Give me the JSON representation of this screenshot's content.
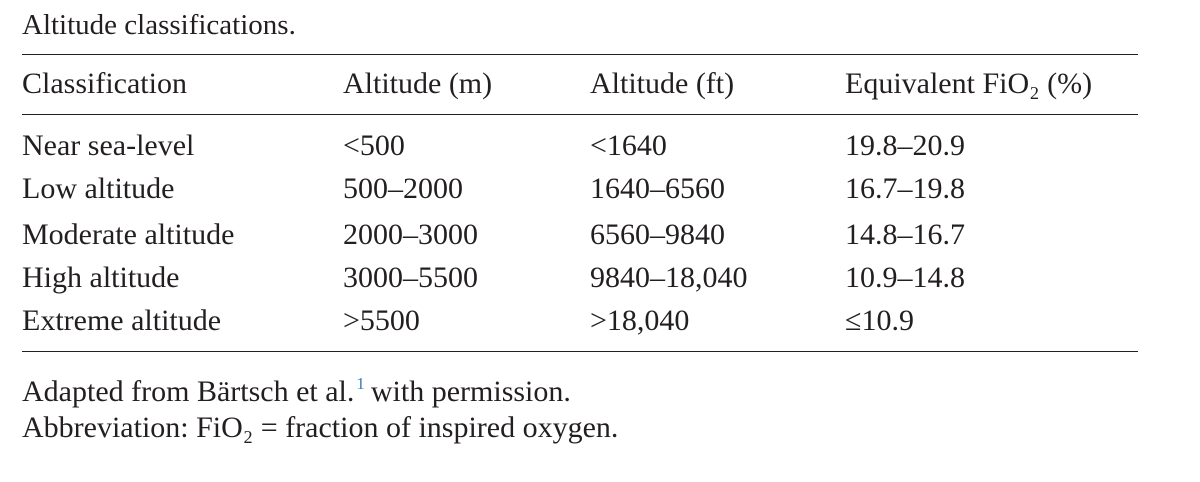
{
  "title": "Altitude classifications.",
  "table": {
    "header": [
      "Classification",
      "Altitude (m)",
      "Altitude (ft)",
      "Equivalent FiO₂ (%)"
    ],
    "rows": [
      [
        "Near sea-level",
        "<500",
        "<1640",
        "19.8–20.9"
      ],
      [
        "Low altitude",
        "500–2000",
        "1640–6560",
        "16.7–19.8"
      ],
      [
        "Moderate altitude",
        "2000–3000",
        "6560–9840",
        "14.8–16.7"
      ],
      [
        "High altitude",
        "3000–5500",
        "9840–18,040",
        "10.9–14.8"
      ],
      [
        "Extreme altitude",
        ">5500",
        ">18,040",
        "≤10.9"
      ]
    ]
  },
  "notes": {
    "source": {
      "before": "Adapted from Bärtsch et al.",
      "ref": "1",
      "after": "with permission."
    },
    "abbreviation": "Abbreviation: FiO₂ = fraction of inspired oxygen."
  }
}
